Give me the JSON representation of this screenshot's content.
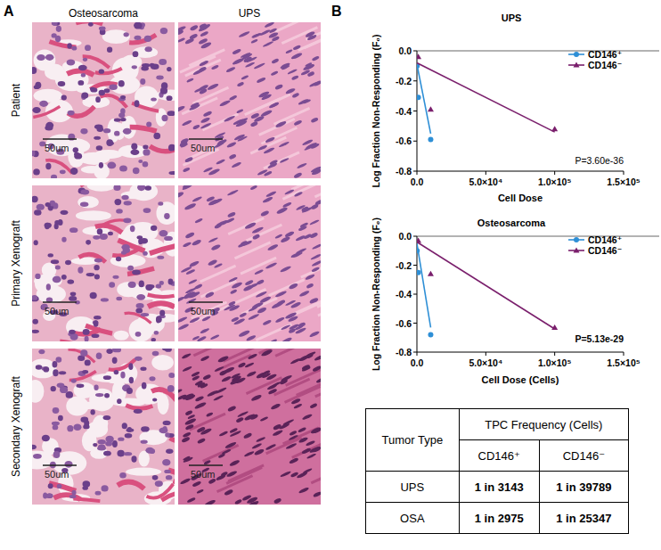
{
  "panel_labels": [
    "A",
    "B"
  ],
  "panel_a": {
    "columns": [
      "Osteosarcoma",
      "UPS"
    ],
    "rows": [
      "Patient",
      "Primary Xenograft",
      "Secondary Xenograft"
    ],
    "scale_bar": "50um"
  },
  "chart_data": [
    {
      "type": "scatter",
      "title": "UPS",
      "x_label": "Cell Dose",
      "y_label": "Log Fraction Non-Responding (F₀)",
      "xlim": [
        0,
        150000
      ],
      "ylim": [
        -0.8,
        0
      ],
      "xticks": [
        {
          "value": 0,
          "label": "0.0"
        },
        {
          "value": 50000,
          "label": "5.0×10⁴"
        },
        {
          "value": 100000,
          "label": "1.0×10⁵"
        },
        {
          "value": 150000,
          "label": "1.5×10⁵"
        }
      ],
      "yticks": [
        {
          "value": 0,
          "label": "0.0"
        },
        -0.2,
        -0.4,
        -0.6,
        -0.8
      ],
      "legend": "upper right",
      "annotation": "P=3.60e-36",
      "series": [
        {
          "name": "CD146⁺",
          "color": "#2e8fd6",
          "marker": "circle",
          "x": [
            100,
            1000,
            10000
          ],
          "values": [
            -0.1,
            -0.31,
            -0.59
          ],
          "fit_x": [
            0,
            10000
          ],
          "fit_values": [
            -0.09,
            -0.55
          ]
        },
        {
          "name": "CD146⁻",
          "color": "#7a1f6c",
          "marker": "triangle",
          "x": [
            1000,
            10000,
            100000
          ],
          "values": [
            -0.04,
            -0.39,
            -0.52
          ],
          "fit_x": [
            0,
            100000
          ],
          "fit_values": [
            -0.08,
            -0.54
          ]
        }
      ]
    },
    {
      "type": "scatter",
      "title": "Osteosarcoma",
      "x_label": "Cell Dose (Cells)",
      "y_label": "Log Fraction Non-Responding (F₀)",
      "xlim": [
        0,
        150000
      ],
      "ylim": [
        -0.8,
        0
      ],
      "xticks": [
        {
          "value": 0,
          "label": "0.0"
        },
        {
          "value": 50000,
          "label": "5.0×10⁴"
        },
        {
          "value": 100000,
          "label": "1.0×10⁵"
        },
        {
          "value": 150000,
          "label": "1.5×10⁵"
        }
      ],
      "yticks": [
        {
          "value": 0,
          "label": "0.0"
        },
        -0.2,
        -0.4,
        -0.6,
        -0.8
      ],
      "legend": "upper right",
      "annotation": "P=5.13e-29",
      "series": [
        {
          "name": "CD146⁺",
          "color": "#2e8fd6",
          "marker": "circle",
          "x": [
            100,
            1000,
            10000
          ],
          "values": [
            -0.1,
            -0.25,
            -0.68
          ],
          "fit_x": [
            0,
            10000
          ],
          "fit_values": [
            -0.05,
            -0.63
          ]
        },
        {
          "name": "CD146⁻",
          "color": "#7a1f6c",
          "marker": "triangle",
          "x": [
            1000,
            10000,
            100000
          ],
          "values": [
            -0.03,
            -0.26,
            -0.63
          ],
          "fit_x": [
            0,
            100000
          ],
          "fit_values": [
            -0.04,
            -0.64
          ]
        }
      ]
    }
  ],
  "table": {
    "header": [
      "Tumor Type",
      "TPC Frequency (Cells)"
    ],
    "subheader": [
      "CD146⁺",
      "CD146⁻"
    ],
    "rows": [
      [
        "UPS",
        "1 in 3143",
        "1 in 39789"
      ],
      [
        "OSA",
        "1 in 2975",
        "1 in 25347"
      ]
    ]
  }
}
